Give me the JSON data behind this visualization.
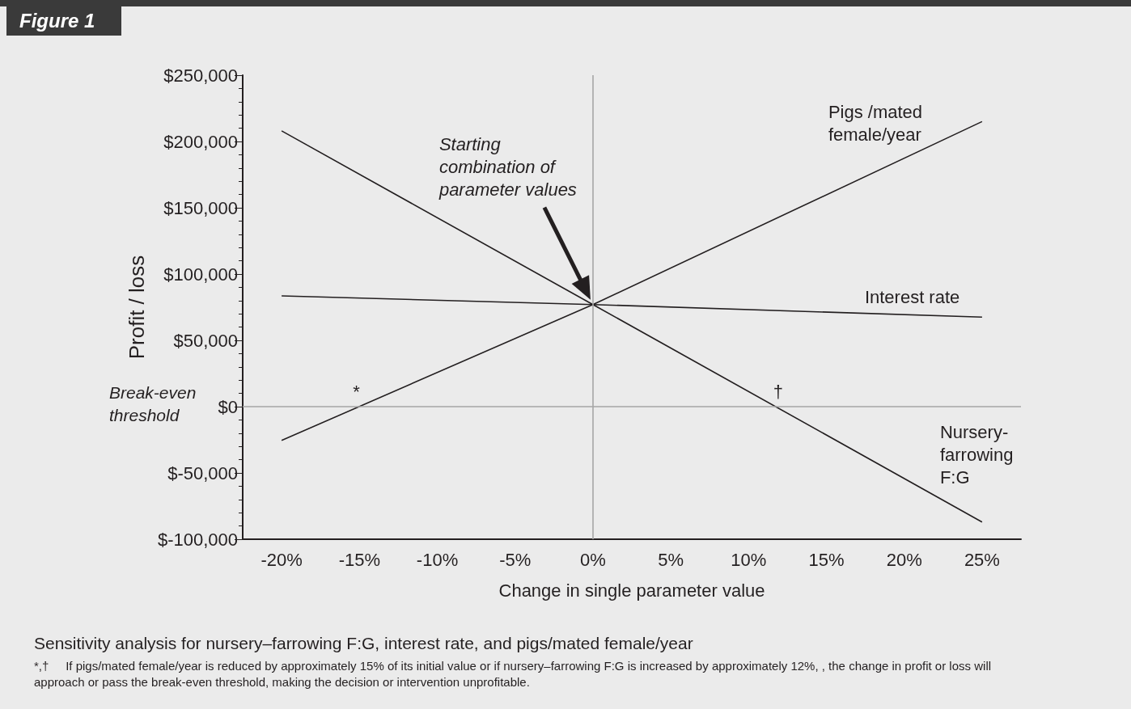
{
  "chart_data": {
    "type": "line",
    "title": "Figure 1",
    "xlabel": "Change in single parameter value",
    "ylabel": "Profit / loss",
    "x": [
      -20,
      0,
      25
    ],
    "series": [
      {
        "name": "Pigs /mated female/year",
        "color": "#231f20",
        "values": [
          -25500,
          77000,
          215000
        ]
      },
      {
        "name": "Interest rate",
        "color": "#231f20",
        "values": [
          83500,
          77000,
          67500
        ]
      },
      {
        "name": "Nursery-farrowing F:G",
        "color": "#231f20",
        "values": [
          208000,
          77000,
          -87000
        ]
      }
    ],
    "xlim": [
      -22.5,
      27.5
    ],
    "xticks": [
      {
        "value": -20,
        "label": "-20%"
      },
      {
        "value": -15,
        "label": "-15%"
      },
      {
        "value": -10,
        "label": "-10%"
      },
      {
        "value": -5,
        "label": "-5%"
      },
      {
        "value": 0,
        "label": "0%"
      },
      {
        "value": 5,
        "label": "5%"
      },
      {
        "value": 10,
        "label": "10%"
      },
      {
        "value": 15,
        "label": "15%"
      },
      {
        "value": 20,
        "label": "20%"
      },
      {
        "value": 25,
        "label": "25%"
      }
    ],
    "ylim": [
      -100000,
      250000
    ],
    "yticks": [
      {
        "value": -100000,
        "label": "$-100,000"
      },
      {
        "value": -50000,
        "label": "$-50,000"
      },
      {
        "value": 0,
        "label": "$0"
      },
      {
        "value": 50000,
        "label": "$50,000"
      },
      {
        "value": 100000,
        "label": "$100,000"
      },
      {
        "value": 150000,
        "label": "$150,000"
      },
      {
        "value": 200000,
        "label": "$200,000"
      },
      {
        "value": 250000,
        "label": "$250,000"
      }
    ],
    "ref_lines": [
      {
        "axis": "y",
        "value": 0,
        "label": "Break-even threshold",
        "color": "#a6a6a6"
      },
      {
        "axis": "x",
        "value": 0,
        "color": "#a6a6a6"
      }
    ],
    "annotations": [
      "Starting combination of parameter values",
      {
        "text": "*",
        "x": -15,
        "y": 0
      },
      {
        "text": "†",
        "x": 12,
        "y": 0
      },
      "Sensitivity analysis for nursery–farrowing F:G, interest rate, and pigs/mated female/year",
      "*,†     If pigs/mated female/year is reduced by approximately 15% of its initial value or if nursery–farrowing F:G is increased by approximately 12%, , the change in profit or loss will approach or pass the break-even threshold, making the decision or intervention unprofitable."
    ],
    "grid": false,
    "legend": false,
    "marker": "none",
    "line_style": "solid"
  }
}
